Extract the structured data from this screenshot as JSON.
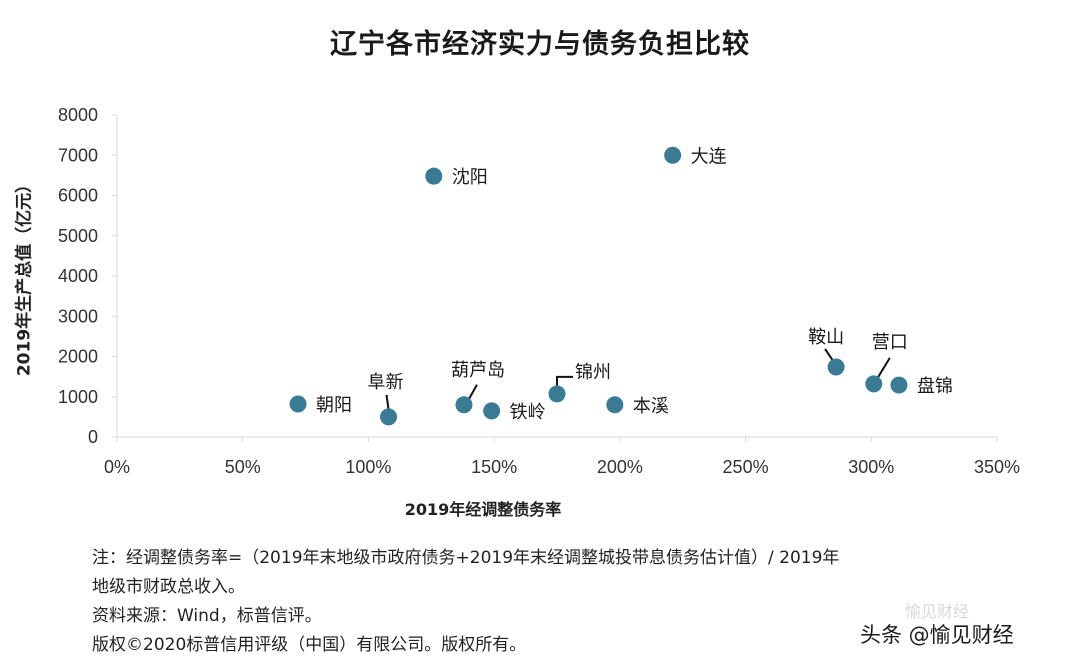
{
  "chart_data": {
    "type": "scatter",
    "title": "辽宁各市经济实力与债务负担比较",
    "xlabel": "2019年经调整债务率",
    "ylabel": "2019年生产总值（亿元）",
    "xlim": [
      0,
      350
    ],
    "ylim": [
      0,
      8000
    ],
    "x_ticks": [
      "0%",
      "50%",
      "100%",
      "150%",
      "200%",
      "250%",
      "300%",
      "350%"
    ],
    "y_ticks": [
      "0",
      "1000",
      "2000",
      "3000",
      "4000",
      "5000",
      "6000",
      "7000",
      "8000"
    ],
    "grid": false,
    "legend": "none",
    "marker_color": "#3a7a92",
    "points": [
      {
        "name": "朝阳",
        "x": 72,
        "y": 820
      },
      {
        "name": "阜新",
        "x": 108,
        "y": 500
      },
      {
        "name": "沈阳",
        "x": 126,
        "y": 6480
      },
      {
        "name": "葫芦岛",
        "x": 138,
        "y": 800
      },
      {
        "name": "铁岭",
        "x": 149,
        "y": 650
      },
      {
        "name": "锦州",
        "x": 175,
        "y": 1070
      },
      {
        "name": "本溪",
        "x": 198,
        "y": 800
      },
      {
        "name": "大连",
        "x": 221,
        "y": 7000
      },
      {
        "name": "鞍山",
        "x": 286,
        "y": 1740
      },
      {
        "name": "营口",
        "x": 301,
        "y": 1320
      },
      {
        "name": "盘锦",
        "x": 311,
        "y": 1290
      }
    ]
  },
  "notes": {
    "line1": "注：经调整债务率=（2019年末地级市政府债务+2019年末经调整城投带息债务估计值）/ 2019年",
    "line2": "地级市财政总收入。",
    "source": "资料来源：Wind，标普信评。",
    "copyright": "版权©2020标普信用评级（中国）有限公司。版权所有。"
  },
  "watermark": {
    "faint": "愉见财经",
    "main": "头条 @愉见财经"
  }
}
